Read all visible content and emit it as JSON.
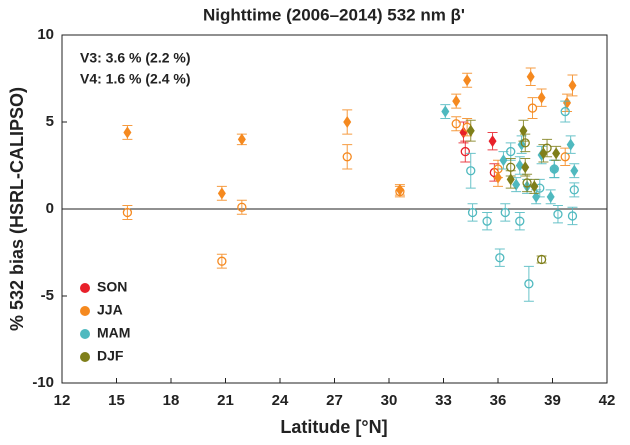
{
  "chart_data": {
    "type": "scatter",
    "title": "Nighttime (2006–2014) 532 nm β'",
    "x_label": "Latitude [°N]",
    "y_label": "% 532 bias  (HSRL-CALIPSO)",
    "annotations": [
      "V3: 3.6 % (2.2 %)",
      "V4: 1.6 % (2.4 %)"
    ],
    "xlim": [
      12,
      42
    ],
    "xticks": [
      12,
      15,
      18,
      21,
      24,
      27,
      30,
      33,
      36,
      39,
      42
    ],
    "ylim": [
      -10,
      10
    ],
    "yticks": [
      -10,
      -5,
      0,
      5,
      10
    ],
    "legend": "lower left",
    "series": [
      {
        "name": "SON",
        "color": "#e8202a",
        "x": [
          34.1,
          35.7
        ],
        "values": [
          4.4,
          3.9
        ],
        "errors": [
          0.6,
          0.5
        ],
        "x_open": [
          34.2,
          35.8
        ],
        "values_open": [
          3.3,
          2.1
        ],
        "errors_open": [
          0.6,
          0.5
        ]
      },
      {
        "name": "JJA",
        "color": "#f5891f",
        "x": [
          15.6,
          20.8,
          21.9,
          27.7,
          30.6,
          33.7,
          34.3,
          37.8,
          38.4,
          39.8,
          40.1,
          36.0
        ],
        "values": [
          4.4,
          0.9,
          4.0,
          5.0,
          1.1,
          6.2,
          7.4,
          7.6,
          6.4,
          6.1,
          7.1,
          1.8
        ],
        "errors": [
          0.4,
          0.4,
          0.3,
          0.7,
          0.3,
          0.4,
          0.4,
          0.5,
          0.5,
          0.5,
          0.6,
          0.5
        ],
        "x_open": [
          15.6,
          20.8,
          21.9,
          27.7,
          30.6,
          33.7,
          34.3,
          37.9,
          39.7,
          36.0
        ],
        "values_open": [
          -0.2,
          -3.0,
          0.1,
          3.0,
          1.0,
          4.9,
          4.7,
          5.8,
          3.0,
          2.3
        ],
        "errors_open": [
          0.4,
          0.4,
          0.4,
          0.7,
          0.3,
          0.4,
          0.5,
          0.6,
          0.5,
          0.5
        ]
      },
      {
        "name": "MAM",
        "color": "#4fb9bf",
        "x": [
          33.1,
          37.0,
          36.3,
          37.3,
          37.6,
          38.4,
          38.9,
          40.0,
          40.2,
          37.2,
          38.1,
          39.1
        ],
        "values": [
          5.6,
          1.4,
          2.8,
          3.7,
          1.3,
          3.1,
          0.7,
          3.7,
          2.2,
          2.5,
          0.7,
          2.3
        ],
        "errors": [
          0.4,
          0.4,
          0.5,
          0.5,
          0.4,
          0.5,
          0.4,
          0.5,
          0.4,
          0.5,
          0.4,
          0.5
        ],
        "x_open": [
          34.5,
          34.6,
          35.4,
          36.1,
          36.4,
          37.2,
          37.7,
          39.7,
          39.3,
          40.1,
          40.2,
          36.7,
          38.3,
          39.1
        ],
        "values_open": [
          2.2,
          -0.2,
          -0.7,
          -2.8,
          -0.2,
          -0.7,
          -4.3,
          5.6,
          -0.3,
          -0.4,
          1.1,
          3.3,
          1.2,
          2.3
        ],
        "errors_open": [
          1.0,
          0.5,
          0.5,
          0.5,
          0.5,
          0.5,
          1.0,
          0.6,
          0.5,
          0.5,
          0.4,
          0.5,
          0.5,
          0.5
        ]
      },
      {
        "name": "DJF",
        "color": "#7f7f1a",
        "x": [
          34.5,
          37.4,
          38.5,
          39.2,
          38.0,
          36.7,
          37.5
        ],
        "values": [
          4.5,
          4.5,
          3.2,
          3.2,
          1.3,
          1.7,
          2.4
        ],
        "errors": [
          0.6,
          0.6,
          0.5,
          0.4,
          0.4,
          0.5,
          0.5
        ],
        "x_open": [
          37.5,
          37.6,
          38.4,
          38.7,
          36.7
        ],
        "values_open": [
          3.8,
          1.5,
          -2.9,
          3.5,
          2.4
        ],
        "errors_open": [
          0.5,
          0.5,
          0.2,
          0.5,
          0.5
        ]
      }
    ]
  }
}
